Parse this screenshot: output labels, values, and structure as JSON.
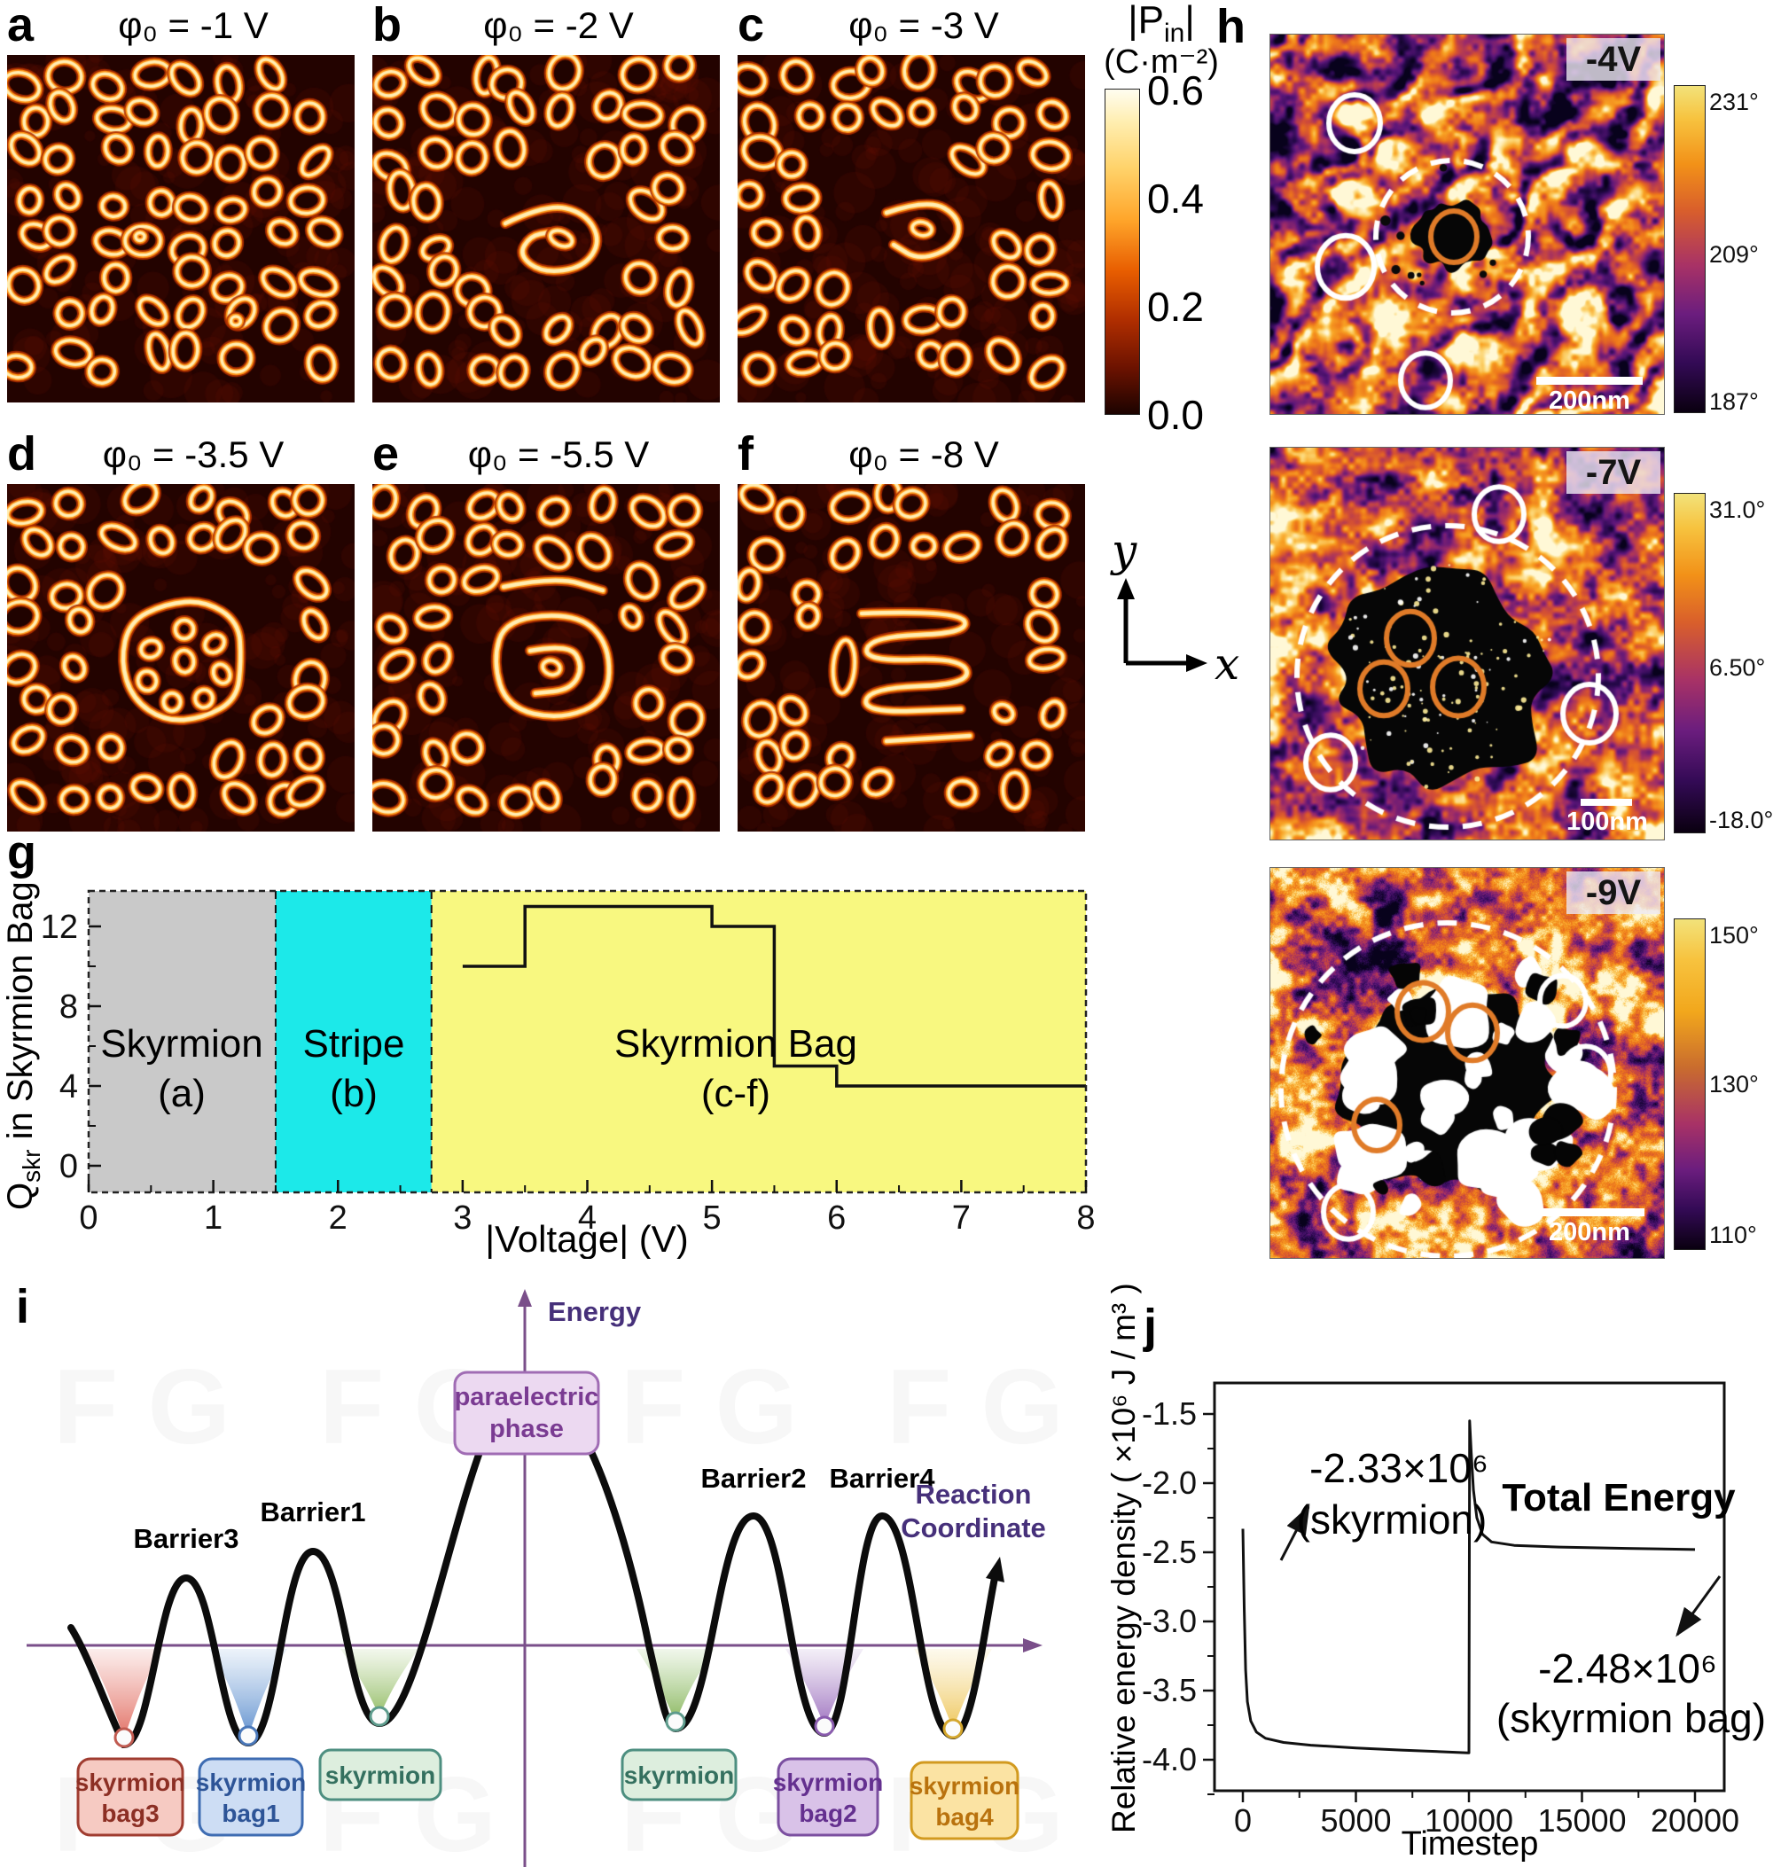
{
  "figure": {
    "sim": {
      "panels": [
        {
          "letter": "a",
          "phi": "φ₀ = -1 V"
        },
        {
          "letter": "b",
          "phi": "φ₀ = -2 V"
        },
        {
          "letter": "c",
          "phi": "φ₀ = -3 V"
        },
        {
          "letter": "d",
          "phi": "φ₀ = -3.5 V"
        },
        {
          "letter": "e",
          "phi": "φ₀ = -5.5 V"
        },
        {
          "letter": "f",
          "phi": "φ₀ = -8 V"
        }
      ],
      "colorbar": {
        "title_p": "|P",
        "title_sub": "in",
        "title_close": "|",
        "units": "(C·m⁻²)",
        "ticks": [
          "0.6",
          "0.4",
          "0.2",
          "0.0"
        ]
      },
      "axis_x": "x",
      "axis_y": "y"
    },
    "g": {
      "letter": "g",
      "ylabel_q": "Q",
      "ylabel_sub": "skr",
      "ylabel_rest": " in Skyrmion Bag",
      "xlabel": "|Voltage| (V)",
      "regions": [
        {
          "title": "Skyrmion",
          "sub": "(a)",
          "color": "#c9c9c9"
        },
        {
          "title": "Stripe",
          "sub": "(b)",
          "color": "#1ce9e9"
        },
        {
          "title": "Skyrmion Bag",
          "sub": "(c-f)",
          "color": "#f8f880"
        }
      ]
    },
    "h": {
      "letter": "h",
      "panels": [
        {
          "voltage": "-4V",
          "scalebar": "200nm",
          "cb": [
            "231°",
            "209°",
            "187°"
          ]
        },
        {
          "voltage": "-7V",
          "scalebar": "100nm",
          "cb": [
            "31.0°",
            "6.50°",
            "-18.0°"
          ]
        },
        {
          "voltage": "-9V",
          "scalebar": "200nm",
          "cb": [
            "150°",
            "130°",
            "110°"
          ]
        }
      ]
    },
    "i": {
      "letter": "i",
      "energy_label": "Energy",
      "reaction1": "Reaction",
      "reaction2": "Coordinate",
      "peak1": "paraelectric",
      "peak2": "phase",
      "barriers": [
        "Barrier3",
        "Barrier1",
        "Barrier2",
        "Barrier4"
      ],
      "wells": [
        {
          "l1": "skyrmion",
          "l2": "bag3"
        },
        {
          "l1": "skyrmion",
          "l2": "bag1"
        },
        {
          "l1": "skyrmion",
          "l2": ""
        },
        {
          "l1": "skyrmion",
          "l2": ""
        },
        {
          "l1": "skyrmion",
          "l2": "bag2"
        },
        {
          "l1": "skyrmion",
          "l2": "bag4"
        }
      ]
    },
    "j": {
      "letter": "j",
      "ylabel": "Relative energy density ( ×10⁶ J / m³ )",
      "xlabel": "Timestep",
      "ann_sky_val": "-2.33×10⁶",
      "ann_sky_sub": "(skyrmion)",
      "total_energy": "Total Energy",
      "ann_bag_val": "-2.48×10⁶",
      "ann_bag_sub": "(skyrmion bag)"
    }
  },
  "chart_data": [
    {
      "type": "line",
      "subtype": "step",
      "title": "",
      "xlabel": "|Voltage| (V)",
      "ylabel": "Qskr in Skyrmion Bag",
      "xlim": [
        0,
        8
      ],
      "ylim": [
        -1.4,
        13.9
      ],
      "xticks": [
        0,
        1,
        2,
        3,
        4,
        5,
        6,
        7,
        8
      ],
      "yticks": [
        0,
        4,
        8,
        12
      ],
      "points": [
        [
          3,
          10
        ],
        [
          3.5,
          10
        ],
        [
          3.5,
          13
        ],
        [
          5,
          13
        ],
        [
          5,
          12
        ],
        [
          5.5,
          12
        ],
        [
          5.5,
          5
        ],
        [
          6,
          5
        ],
        [
          6,
          4
        ],
        [
          8,
          4
        ]
      ],
      "regions": [
        {
          "label": "Skyrmion (a)",
          "from": 0,
          "to": 1.5
        },
        {
          "label": "Stripe (b)",
          "from": 1.5,
          "to": 2.75
        },
        {
          "label": "Skyrmion Bag (c-f)",
          "from": 2.75,
          "to": 8
        }
      ],
      "legend": "none",
      "grid": false
    },
    {
      "type": "line",
      "title": "Total Energy",
      "xlabel": "Timestep",
      "ylabel": "Relative energy density (×10⁶ J/m³)",
      "xlim": [
        0,
        21500
      ],
      "ylim": [
        -4.35,
        -1.25
      ],
      "xticks": [
        0,
        5000,
        10000,
        15000,
        20000
      ],
      "yticks": [
        -1.5,
        -2.0,
        -2.5,
        -3.0,
        -3.5,
        -4.0
      ],
      "points": [
        [
          0,
          -2.33
        ],
        [
          60,
          -2.9
        ],
        [
          120,
          -3.35
        ],
        [
          200,
          -3.58
        ],
        [
          350,
          -3.72
        ],
        [
          600,
          -3.8
        ],
        [
          1000,
          -3.845
        ],
        [
          1800,
          -3.875
        ],
        [
          3000,
          -3.895
        ],
        [
          5000,
          -3.915
        ],
        [
          7000,
          -3.93
        ],
        [
          8500,
          -3.94
        ],
        [
          9950,
          -3.95
        ],
        [
          10000,
          -3.95
        ],
        [
          10030,
          -1.55
        ],
        [
          10100,
          -1.78
        ],
        [
          10200,
          -2.05
        ],
        [
          10350,
          -2.25
        ],
        [
          10600,
          -2.37
        ],
        [
          11000,
          -2.425
        ],
        [
          12000,
          -2.45
        ],
        [
          14000,
          -2.462
        ],
        [
          17000,
          -2.472
        ],
        [
          20000,
          -2.48
        ]
      ],
      "annotations": [
        "-2.33×10⁶ (skyrmion)",
        "-2.48×10⁶ (skyrmion bag)"
      ],
      "legend": "none",
      "grid": false
    }
  ]
}
